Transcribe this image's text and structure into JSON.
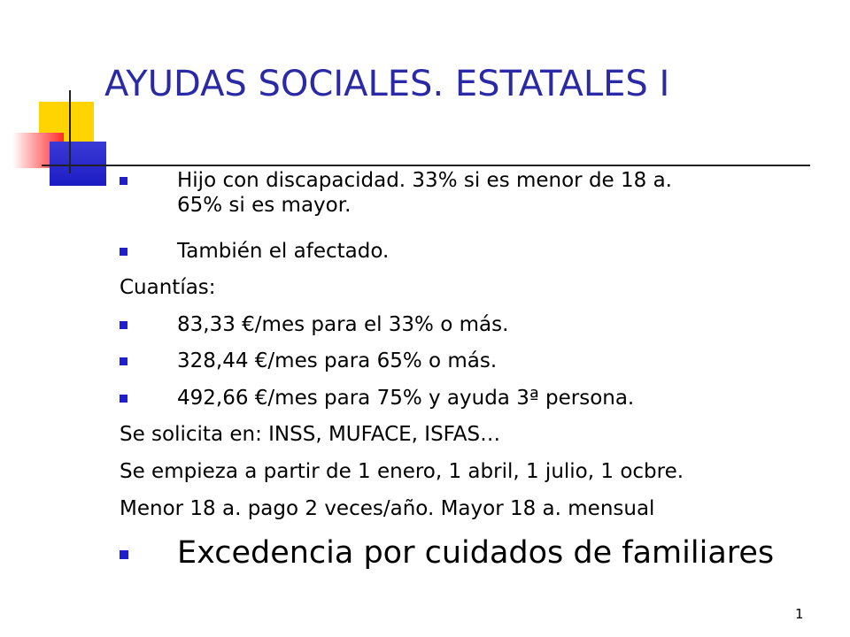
{
  "slide": {
    "title": "AYUDAS SOCIALES. ESTATALES I",
    "page_number": "1",
    "colors": {
      "title": "#2a2aa6",
      "bullet": "#1f1fd0",
      "deco_yellow": "#ffd400",
      "deco_red": "#ff2b2b",
      "deco_blue": "#1c1cc4"
    },
    "items": [
      {
        "kind": "bullet",
        "text_line1": "Hijo con discapacidad. 33% si es menor de 18 a.",
        "text_line2": "65% si es mayor."
      },
      {
        "kind": "bullet",
        "text": "También el afectado."
      },
      {
        "kind": "plain",
        "text": "Cuantías:"
      },
      {
        "kind": "bullet",
        "text": "83,33 €/mes para el 33% o más."
      },
      {
        "kind": "bullet",
        "text": "328,44 €/mes para 65% o más."
      },
      {
        "kind": "bullet",
        "text": "492,66 €/mes para 75% y ayuda 3ª persona."
      },
      {
        "kind": "plain",
        "text": "Se solicita en: INSS, MUFACE, ISFAS…"
      },
      {
        "kind": "plain",
        "text": "Se empieza a partir de 1 enero, 1 abril, 1 julio, 1 ocbre."
      },
      {
        "kind": "plain",
        "text": "Menor 18 a. pago 2 veces/año. Mayor 18 a. mensual"
      },
      {
        "kind": "bullet-large",
        "text": "Excedencia por cuidados de familiares"
      }
    ]
  }
}
